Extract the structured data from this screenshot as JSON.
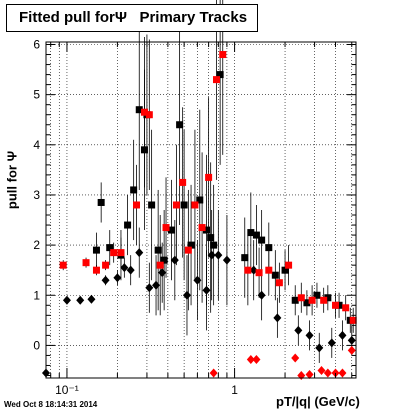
{
  "chart_data": {
    "type": "scatter",
    "title": "Fitted pull forΨ   Primary Tracks",
    "xlabel": "pT/|q| (GeV/c)",
    "ylabel": "pull for Ψ",
    "x_scale": "log",
    "xlim": [
      0.075,
      5.3
    ],
    "ylim": [
      -0.65,
      6.05
    ],
    "x_ticks": [
      {
        "value": 0.1,
        "label": "10⁻¹"
      },
      {
        "value": 1,
        "label": "1"
      }
    ],
    "y_ticks": [
      0,
      1,
      2,
      3,
      4,
      5,
      6
    ],
    "grid": true,
    "series": [
      {
        "color": "#000000",
        "marker": "square",
        "points": [
          {
            "x": 0.15,
            "y": 1.9,
            "err": 0.35
          },
          {
            "x": 0.16,
            "y": 2.85,
            "err": 0.4
          },
          {
            "x": 0.18,
            "y": 1.95,
            "err": 0.35
          },
          {
            "x": 0.21,
            "y": 1.8,
            "err": 0.5
          },
          {
            "x": 0.23,
            "y": 2.4,
            "err": 0.6
          },
          {
            "x": 0.25,
            "y": 3.1,
            "err": 1.0
          },
          {
            "x": 0.27,
            "y": 4.7,
            "err": 1.6
          },
          {
            "x": 0.29,
            "y": 3.9,
            "err": 1.6
          },
          {
            "x": 0.3,
            "y": 4.6,
            "err": 1.6
          },
          {
            "x": 0.32,
            "y": 2.8,
            "err": 1.5
          },
          {
            "x": 0.35,
            "y": 1.9,
            "err": 1.2
          },
          {
            "x": 0.38,
            "y": 1.7,
            "err": 1.0
          },
          {
            "x": 0.42,
            "y": 2.3,
            "err": 1.0
          },
          {
            "x": 0.47,
            "y": 4.4,
            "err": 2.0
          },
          {
            "x": 0.5,
            "y": 2.8,
            "err": 1.5
          },
          {
            "x": 0.55,
            "y": 2.0,
            "err": 1.2
          },
          {
            "x": 0.62,
            "y": 2.9,
            "err": 1.8
          },
          {
            "x": 0.68,
            "y": 2.3,
            "err": 1.5
          },
          {
            "x": 0.72,
            "y": 2.15,
            "err": 1.5
          },
          {
            "x": 0.75,
            "y": 2.0,
            "err": 1.2
          },
          {
            "x": 0.82,
            "y": 5.4,
            "err": 1.8
          },
          {
            "x": 1.15,
            "y": 1.75,
            "err": 0.8
          },
          {
            "x": 1.25,
            "y": 2.25,
            "err": 0.8
          },
          {
            "x": 1.35,
            "y": 2.2,
            "err": 0.6
          },
          {
            "x": 1.45,
            "y": 2.1,
            "err": 0.6
          },
          {
            "x": 1.6,
            "y": 1.95,
            "err": 0.5
          },
          {
            "x": 1.75,
            "y": 1.4,
            "err": 0.5
          },
          {
            "x": 2.0,
            "y": 1.5,
            "err": 0.4
          },
          {
            "x": 2.3,
            "y": 0.9,
            "err": 0.3
          },
          {
            "x": 2.7,
            "y": 0.85,
            "err": 0.25
          },
          {
            "x": 3.1,
            "y": 1.0,
            "err": 0.25
          },
          {
            "x": 3.6,
            "y": 0.95,
            "err": 0.25
          },
          {
            "x": 4.2,
            "y": 0.8,
            "err": 0.25
          },
          {
            "x": 4.9,
            "y": 0.5,
            "err": 0.25
          }
        ]
      },
      {
        "color": "#000000",
        "marker": "diamond",
        "points": [
          {
            "x": 0.075,
            "y": -0.55,
            "err": 0
          },
          {
            "x": 0.1,
            "y": 0.9,
            "err": 0.05
          },
          {
            "x": 0.12,
            "y": 0.9,
            "err": 0.05
          },
          {
            "x": 0.14,
            "y": 0.92,
            "err": 0.05
          },
          {
            "x": 0.17,
            "y": 1.3,
            "err": 0.1
          },
          {
            "x": 0.2,
            "y": 1.35,
            "err": 0.15
          },
          {
            "x": 0.22,
            "y": 1.55,
            "err": 0.2
          },
          {
            "x": 0.24,
            "y": 1.5,
            "err": 0.3
          },
          {
            "x": 0.27,
            "y": 1.85,
            "err": 0.5
          },
          {
            "x": 0.31,
            "y": 1.15,
            "err": 0.5
          },
          {
            "x": 0.34,
            "y": 1.2,
            "err": 0.6
          },
          {
            "x": 0.37,
            "y": 1.45,
            "err": 0.6
          },
          {
            "x": 0.44,
            "y": 1.7,
            "err": 0.8
          },
          {
            "x": 0.52,
            "y": 1.0,
            "err": 0.8
          },
          {
            "x": 0.6,
            "y": 1.3,
            "err": 0.8
          },
          {
            "x": 0.68,
            "y": 1.1,
            "err": 0.8
          },
          {
            "x": 0.73,
            "y": 1.8,
            "err": 0.9
          },
          {
            "x": 0.8,
            "y": 1.8,
            "err": 0.9
          },
          {
            "x": 0.9,
            "y": 1.7,
            "err": 0.9
          },
          {
            "x": 1.3,
            "y": 1.5,
            "err": 0.6
          },
          {
            "x": 1.45,
            "y": 1.0,
            "err": 0.5
          },
          {
            "x": 1.8,
            "y": 0.55,
            "err": 0.4
          },
          {
            "x": 2.4,
            "y": 0.3,
            "err": 0.3
          },
          {
            "x": 2.8,
            "y": 0.2,
            "err": 0.3
          },
          {
            "x": 3.2,
            "y": -0.05,
            "err": 0.3
          },
          {
            "x": 3.8,
            "y": 0.05,
            "err": 0.3
          },
          {
            "x": 4.4,
            "y": 0.2,
            "err": 0.3
          },
          {
            "x": 5.0,
            "y": 0.1,
            "err": 0.3
          }
        ]
      },
      {
        "color": "#ff0000",
        "marker": "square",
        "points": [
          {
            "x": 0.095,
            "y": 1.6,
            "err": 0.1
          },
          {
            "x": 0.13,
            "y": 1.65,
            "err": 0.1
          },
          {
            "x": 0.15,
            "y": 1.5,
            "err": 0.1
          },
          {
            "x": 0.17,
            "y": 1.6,
            "err": 0.1
          },
          {
            "x": 0.19,
            "y": 1.85,
            "err": 0.2
          },
          {
            "x": 0.21,
            "y": 1.85,
            "err": 0.3
          },
          {
            "x": 0.26,
            "y": 2.8,
            "err": 0.8
          },
          {
            "x": 0.29,
            "y": 4.65,
            "err": 1.5
          },
          {
            "x": 0.31,
            "y": 4.6,
            "err": 1.5
          },
          {
            "x": 0.36,
            "y": 1.6,
            "err": 1.0
          },
          {
            "x": 0.39,
            "y": 2.35,
            "err": 1.0
          },
          {
            "x": 0.45,
            "y": 2.8,
            "err": 1.2
          },
          {
            "x": 0.49,
            "y": 3.25,
            "err": 1.5
          },
          {
            "x": 0.53,
            "y": 1.9,
            "err": 1.2
          },
          {
            "x": 0.58,
            "y": 2.8,
            "err": 1.5
          },
          {
            "x": 0.64,
            "y": 2.35,
            "err": 1.5
          },
          {
            "x": 0.7,
            "y": 3.35,
            "err": 1.6
          },
          {
            "x": 0.78,
            "y": 5.3,
            "err": 2.0
          },
          {
            "x": 0.85,
            "y": 5.8,
            "err": 2.0
          },
          {
            "x": 1.2,
            "y": 1.5,
            "err": 0.7
          },
          {
            "x": 1.4,
            "y": 1.45,
            "err": 0.5
          },
          {
            "x": 1.6,
            "y": 1.5,
            "err": 0.5
          },
          {
            "x": 1.85,
            "y": 1.25,
            "err": 0.4
          },
          {
            "x": 2.1,
            "y": 1.6,
            "err": 0.4
          },
          {
            "x": 2.5,
            "y": 0.95,
            "err": 0.3
          },
          {
            "x": 2.9,
            "y": 0.9,
            "err": 0.3
          },
          {
            "x": 3.4,
            "y": 0.9,
            "err": 0.25
          },
          {
            "x": 4.0,
            "y": 0.8,
            "err": 0.25
          },
          {
            "x": 4.6,
            "y": 0.75,
            "err": 0.25
          },
          {
            "x": 5.1,
            "y": 0.5,
            "err": 0.25
          }
        ]
      },
      {
        "color": "#ff0000",
        "marker": "diamond",
        "points": [
          {
            "x": 0.75,
            "y": -0.55,
            "err": 0
          },
          {
            "x": 1.25,
            "y": -0.28,
            "err": 0.05
          },
          {
            "x": 1.35,
            "y": -0.28,
            "err": 0.05
          },
          {
            "x": 2.3,
            "y": -0.25,
            "err": 0.05
          },
          {
            "x": 2.5,
            "y": -0.6,
            "err": 0.05
          },
          {
            "x": 2.8,
            "y": -0.58,
            "err": 0.05
          },
          {
            "x": 3.3,
            "y": -0.5,
            "err": 0.05
          },
          {
            "x": 3.6,
            "y": -0.55,
            "err": 0.05
          },
          {
            "x": 4.0,
            "y": -0.55,
            "err": 0.05
          },
          {
            "x": 4.4,
            "y": -0.55,
            "err": 0.05
          },
          {
            "x": 5.0,
            "y": -0.1,
            "err": 0.05
          }
        ]
      }
    ]
  },
  "footer": "Wed Oct  8 18:14:31 2014"
}
